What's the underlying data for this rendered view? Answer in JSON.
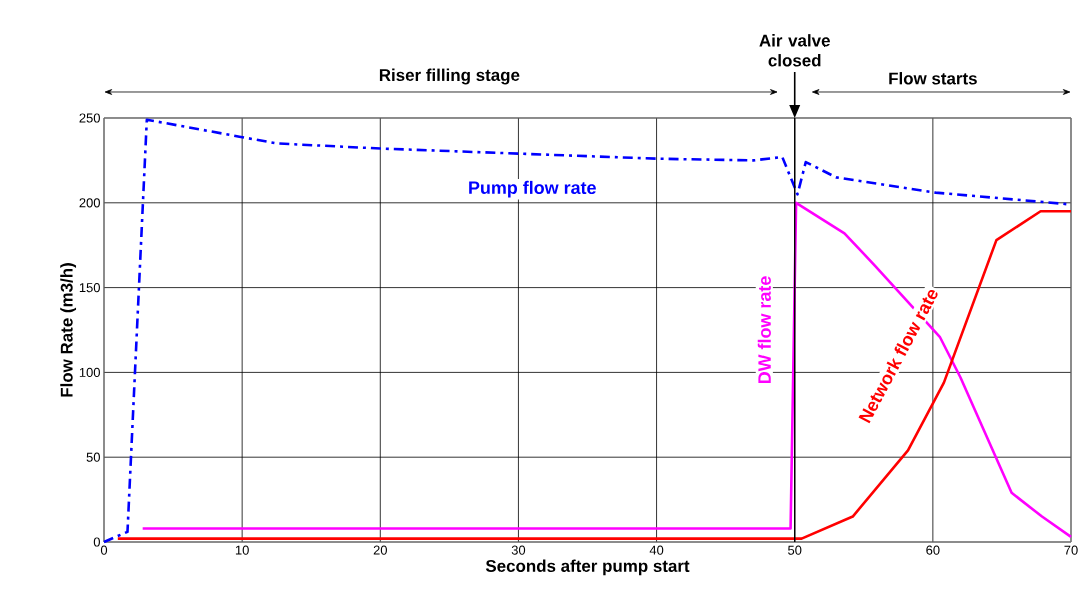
{
  "chart_data": {
    "type": "line",
    "xlabel": "Seconds after pump start",
    "ylabel": "Flow Rate (m3/h)",
    "xlim": [
      0,
      70
    ],
    "ylim": [
      0,
      250
    ],
    "xticks": [
      0,
      10,
      20,
      30,
      40,
      50,
      60,
      70
    ],
    "yticks": [
      0,
      50,
      100,
      150,
      200,
      250
    ],
    "grid": true,
    "annotations": [
      "Riser filling stage",
      "Flow starts"
    ],
    "ref_lines": [
      {
        "axis": "x",
        "value": 50,
        "label": "Air valve closed",
        "color": "#000000"
      }
    ],
    "series": [
      {
        "name": "Pump flow rate",
        "color": "#0000ff",
        "line_style": "dashdot",
        "x": [
          0,
          1.7,
          3.1,
          9.8,
          12.5,
          20,
          30,
          40,
          47,
          49.1,
          50.2,
          50.8,
          53,
          60.2,
          70
        ],
        "values": [
          0,
          6,
          249,
          239,
          235,
          232,
          229,
          226,
          225,
          227,
          205,
          224,
          215,
          206,
          199
        ]
      },
      {
        "name": "DW flow rate",
        "color": "#ff00ff",
        "line_style": "solid",
        "x": [
          2.8,
          49.7,
          50.1,
          53.6,
          55.8,
          60.5,
          62,
          65.7,
          67.9,
          70
        ],
        "values": [
          8,
          8,
          200,
          182,
          163,
          121,
          97,
          29,
          15,
          3
        ]
      },
      {
        "name": "Network flow rate",
        "color": "#ff0000",
        "line_style": "solid",
        "x": [
          1,
          50.5,
          54.2,
          58.2,
          60.8,
          64.6,
          67.8,
          70
        ],
        "values": [
          2,
          2,
          15,
          54,
          94,
          178,
          195,
          195
        ]
      }
    ]
  }
}
